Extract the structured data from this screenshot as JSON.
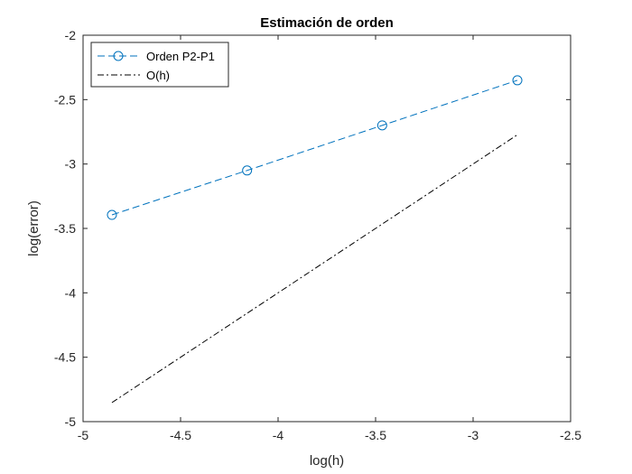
{
  "chart_data": {
    "type": "line",
    "title": "Estimación de orden",
    "xlabel": "log(h)",
    "ylabel": "log(error)",
    "xlim": [
      -5,
      -2.5
    ],
    "ylim": [
      -5,
      -2
    ],
    "x_ticks": [
      -5,
      -4.5,
      -4,
      -3.5,
      -3,
      -2.5
    ],
    "y_ticks": [
      -2,
      -2.5,
      -3,
      -3.5,
      -4,
      -4.5,
      -5
    ],
    "x_tick_labels": [
      "-5",
      "-4.5",
      "-4",
      "-3.5",
      "-3",
      "-2.5"
    ],
    "y_tick_labels": [
      "-2",
      "-2.5",
      "-3",
      "-3.5",
      "-4",
      "-4.5",
      "-5"
    ],
    "grid": false,
    "box": true,
    "legend_position": "top-left",
    "series": [
      {
        "name": "Orden P2-P1",
        "x": [
          -4.852,
          -4.159,
          -3.466,
          -2.773
        ],
        "y": [
          -3.395,
          -3.05,
          -2.7,
          -2.35
        ],
        "color": "#0072BD",
        "line_style": "dashed",
        "marker": "circle"
      },
      {
        "name": "O(h)",
        "x": [
          -4.852,
          -2.773
        ],
        "y": [
          -4.852,
          -2.773
        ],
        "color": "#000000",
        "line_style": "dash-dot",
        "marker": "none"
      }
    ]
  }
}
